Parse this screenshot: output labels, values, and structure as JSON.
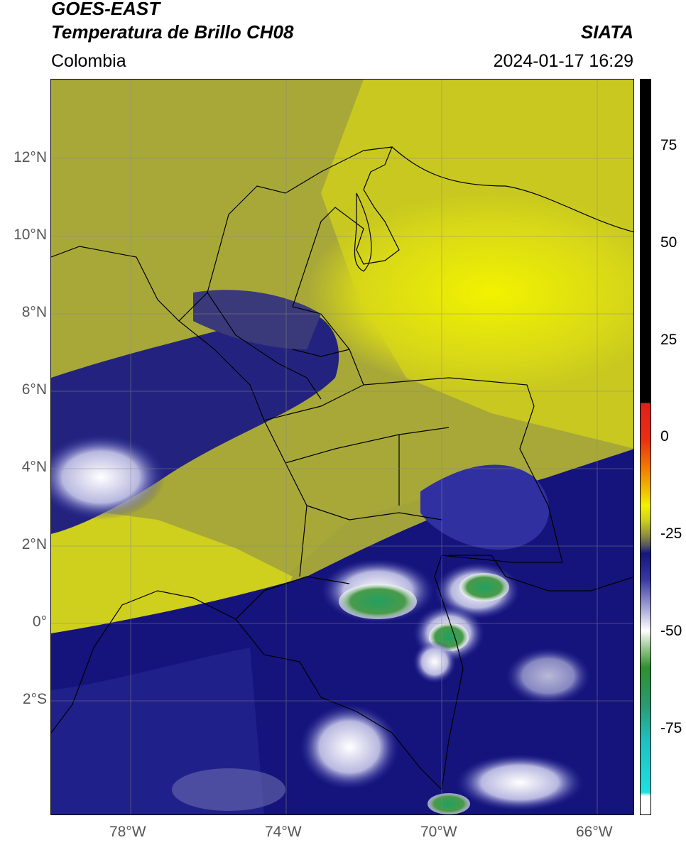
{
  "header": {
    "title_line1": "GOES-EAST",
    "title_line2": "Temperatura de Brillo CH08",
    "region": "Colombia",
    "agency": "SIATA",
    "datetime": "2024-01-17 16:29"
  },
  "map": {
    "latitude_labels": [
      "12°N",
      "10°N",
      "8°N",
      "6°N",
      "4°N",
      "2°N",
      "0°",
      "2°S"
    ],
    "longitude_labels": [
      "78°W",
      "74°W",
      "70°W",
      "66°W"
    ],
    "lat_range": [
      -4.5,
      14.0
    ],
    "lon_range": [
      -80.0,
      -65.0
    ],
    "gridlines": true
  },
  "colorbar": {
    "ticks": [
      "75",
      "50",
      "25",
      "0",
      "-25",
      "-50",
      "-75"
    ],
    "colors": {
      "warm_black": "#000000",
      "red": "#e0201a",
      "orange": "#f0a000",
      "yellow": "#f2f200",
      "olive": "#8f8f40",
      "navy": "#15157e",
      "white": "#ffffff",
      "green": "#2f8f30",
      "teal": "#20c0c0"
    }
  }
}
